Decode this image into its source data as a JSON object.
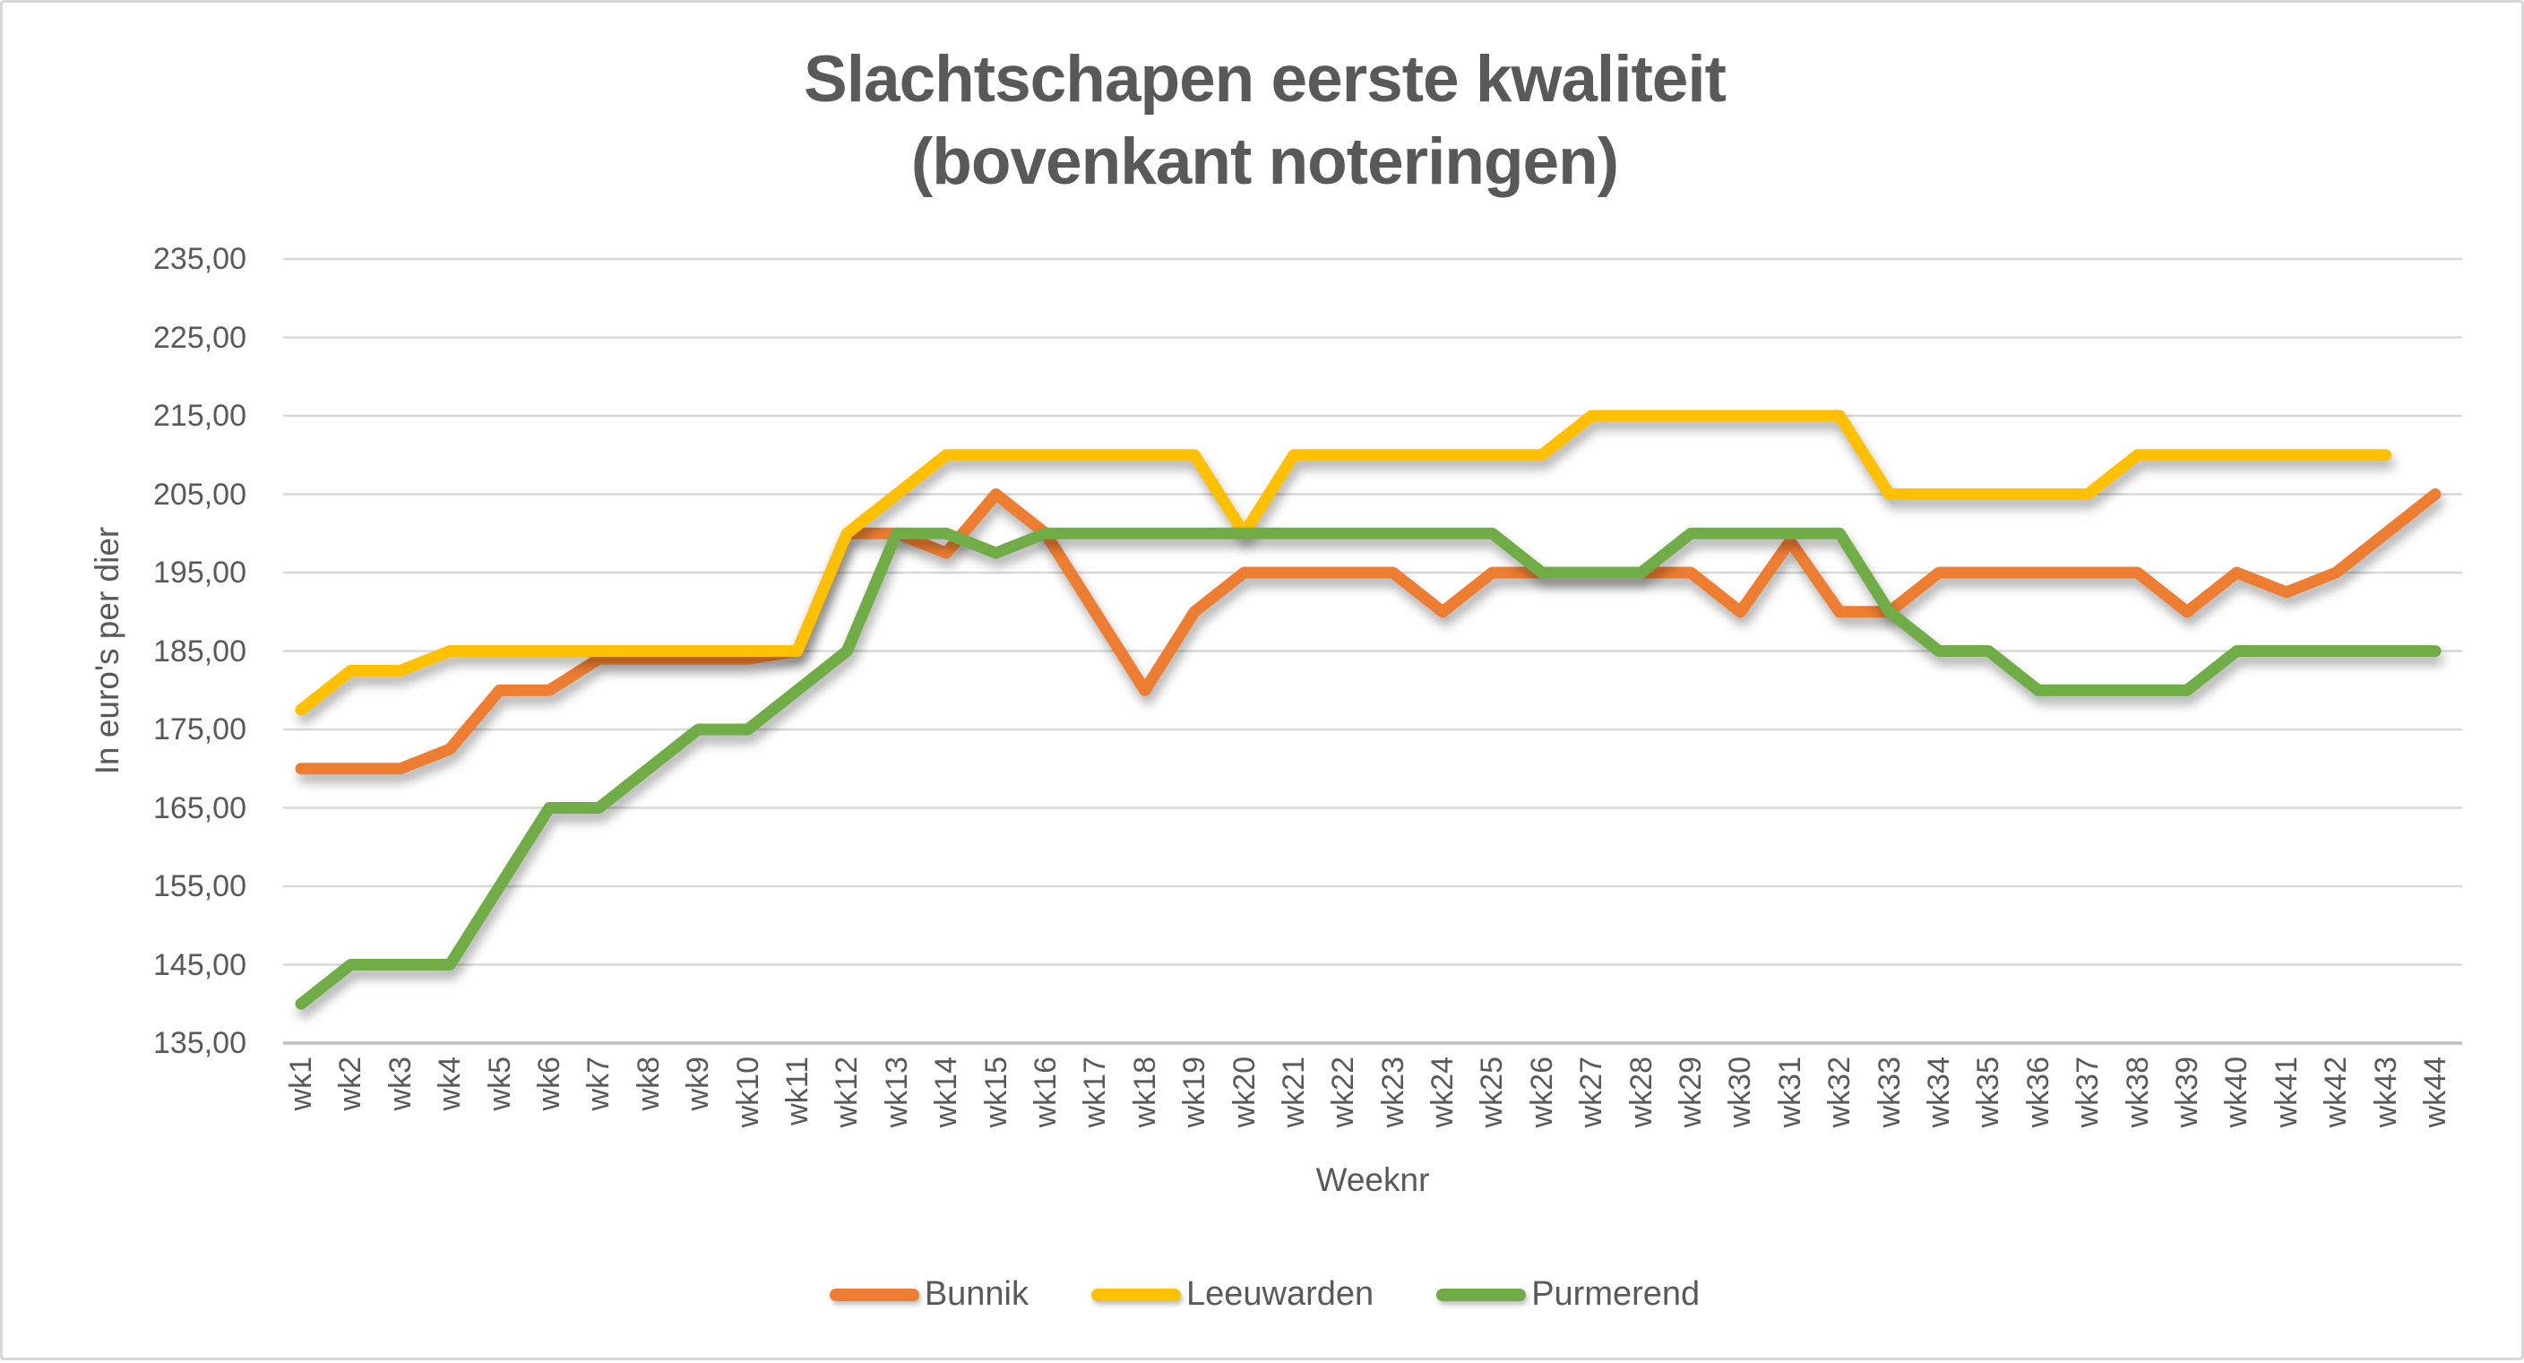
{
  "chart_data": {
    "type": "line",
    "title": "Slachtschapen eerste kwaliteit",
    "subtitle": "(bovenkant noteringen)",
    "xlabel": "Weeknr",
    "ylabel": "In euro's per dier",
    "ylim": [
      135,
      235
    ],
    "grid": true,
    "legend_position": "bottom",
    "ytick_values": [
      135,
      145,
      155,
      165,
      175,
      185,
      195,
      205,
      215,
      225,
      235
    ],
    "ytick_labels": [
      "135,00",
      "145,00",
      "155,00",
      "165,00",
      "175,00",
      "185,00",
      "195,00",
      "205,00",
      "215,00",
      "225,00",
      "235,00"
    ],
    "categories": [
      "wk1",
      "wk2",
      "wk3",
      "wk4",
      "wk5",
      "wk6",
      "wk7",
      "wk8",
      "wk9",
      "wk10",
      "wk11",
      "wk12",
      "wk13",
      "wk14",
      "wk15",
      "wk16",
      "wk17",
      "wk18",
      "wk19",
      "wk20",
      "wk21",
      "wk22",
      "wk23",
      "wk24",
      "wk25",
      "wk26",
      "wk27",
      "wk28",
      "wk29",
      "wk30",
      "wk31",
      "wk32",
      "wk33",
      "wk34",
      "wk35",
      "wk36",
      "wk37",
      "wk38",
      "wk39",
      "wk40",
      "wk41",
      "wk42",
      "wk43",
      "wk44"
    ],
    "series": [
      {
        "name": "Bunnik",
        "color": "#ED7D31",
        "values": [
          170,
          170,
          170,
          172.5,
          180,
          180,
          184,
          184,
          184,
          184,
          185,
          200,
          200,
          197.5,
          205,
          200,
          190,
          180,
          190,
          195,
          195,
          195,
          195,
          190,
          195,
          195,
          195,
          195,
          195,
          190,
          199,
          190,
          190,
          195,
          195,
          195,
          195,
          195,
          190,
          195,
          192.5,
          195,
          200,
          205
        ]
      },
      {
        "name": "Leeuwarden",
        "color": "#FFC000",
        "values": [
          177.5,
          182.5,
          182.5,
          185,
          185,
          185,
          185,
          185,
          185,
          185,
          185,
          200,
          205,
          210,
          210,
          210,
          210,
          210,
          210,
          200,
          210,
          210,
          210,
          210,
          210,
          210,
          215,
          215,
          215,
          215,
          215,
          215,
          205,
          205,
          205,
          205,
          205,
          210,
          210,
          210,
          210,
          210,
          210,
          null
        ]
      },
      {
        "name": "Purmerend",
        "color": "#70AD47",
        "values": [
          140,
          145,
          145,
          145,
          155,
          165,
          165,
          170,
          175,
          175,
          180,
          185,
          200,
          200,
          197.5,
          200,
          200,
          200,
          200,
          200,
          200,
          200,
          200,
          200,
          200,
          195,
          195,
          195,
          200,
          200,
          200,
          200,
          190,
          185,
          185,
          180,
          180,
          180,
          180,
          185,
          185,
          185,
          185,
          185
        ]
      }
    ]
  },
  "styles": {
    "text_color": "#595959",
    "grid_color": "#D9D9D9",
    "axis_line_color": "#BFBFBF",
    "background": "#FFFFFF",
    "border_color": "#D8D8D8"
  }
}
